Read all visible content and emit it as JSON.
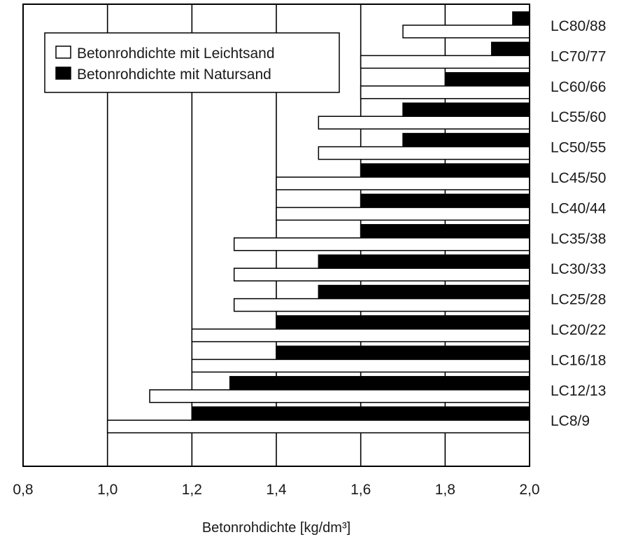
{
  "chart_data": {
    "type": "bar",
    "orientation": "horizontal",
    "xlabel": "Betonrohdichte [kg/dm³]",
    "xlim": [
      0.8,
      2.0
    ],
    "xticks": [
      "0,8",
      "1,0",
      "1,2",
      "1,4",
      "1,6",
      "1,8",
      "2,0"
    ],
    "grid": true,
    "legend_position": "top-left",
    "categories": [
      "LC80/88",
      "LC70/77",
      "LC60/66",
      "LC55/60",
      "LC50/55",
      "LC45/50",
      "LC40/44",
      "LC35/38",
      "LC30/33",
      "LC25/28",
      "LC20/22",
      "LC16/18",
      "LC12/13",
      "LC8/9"
    ],
    "series": [
      {
        "name": "Betonrohdichte mit Natursand",
        "color": "#000000",
        "fill": "black",
        "lower": [
          1.96,
          1.91,
          1.8,
          1.7,
          1.7,
          1.6,
          1.6,
          1.6,
          1.5,
          1.5,
          1.4,
          1.4,
          1.29,
          1.2
        ],
        "upper": [
          2.0,
          2.0,
          2.0,
          2.0,
          2.0,
          2.0,
          2.0,
          2.0,
          2.0,
          2.0,
          2.0,
          2.0,
          2.0,
          2.0
        ]
      },
      {
        "name": "Betonrohdichte mit Leichtsand",
        "color": "#ffffff",
        "fill": "white",
        "lower": [
          1.7,
          1.6,
          1.6,
          1.5,
          1.5,
          1.4,
          1.4,
          1.3,
          1.3,
          1.3,
          1.2,
          1.2,
          1.1,
          1.0
        ],
        "upper": [
          2.0,
          2.0,
          2.0,
          2.0,
          2.0,
          2.0,
          2.0,
          2.0,
          2.0,
          2.0,
          2.0,
          2.0,
          2.0,
          2.0
        ]
      }
    ],
    "legend": [
      "Betonrohdichte mit Leichtsand",
      "Betonrohdichte mit Natursand"
    ]
  }
}
